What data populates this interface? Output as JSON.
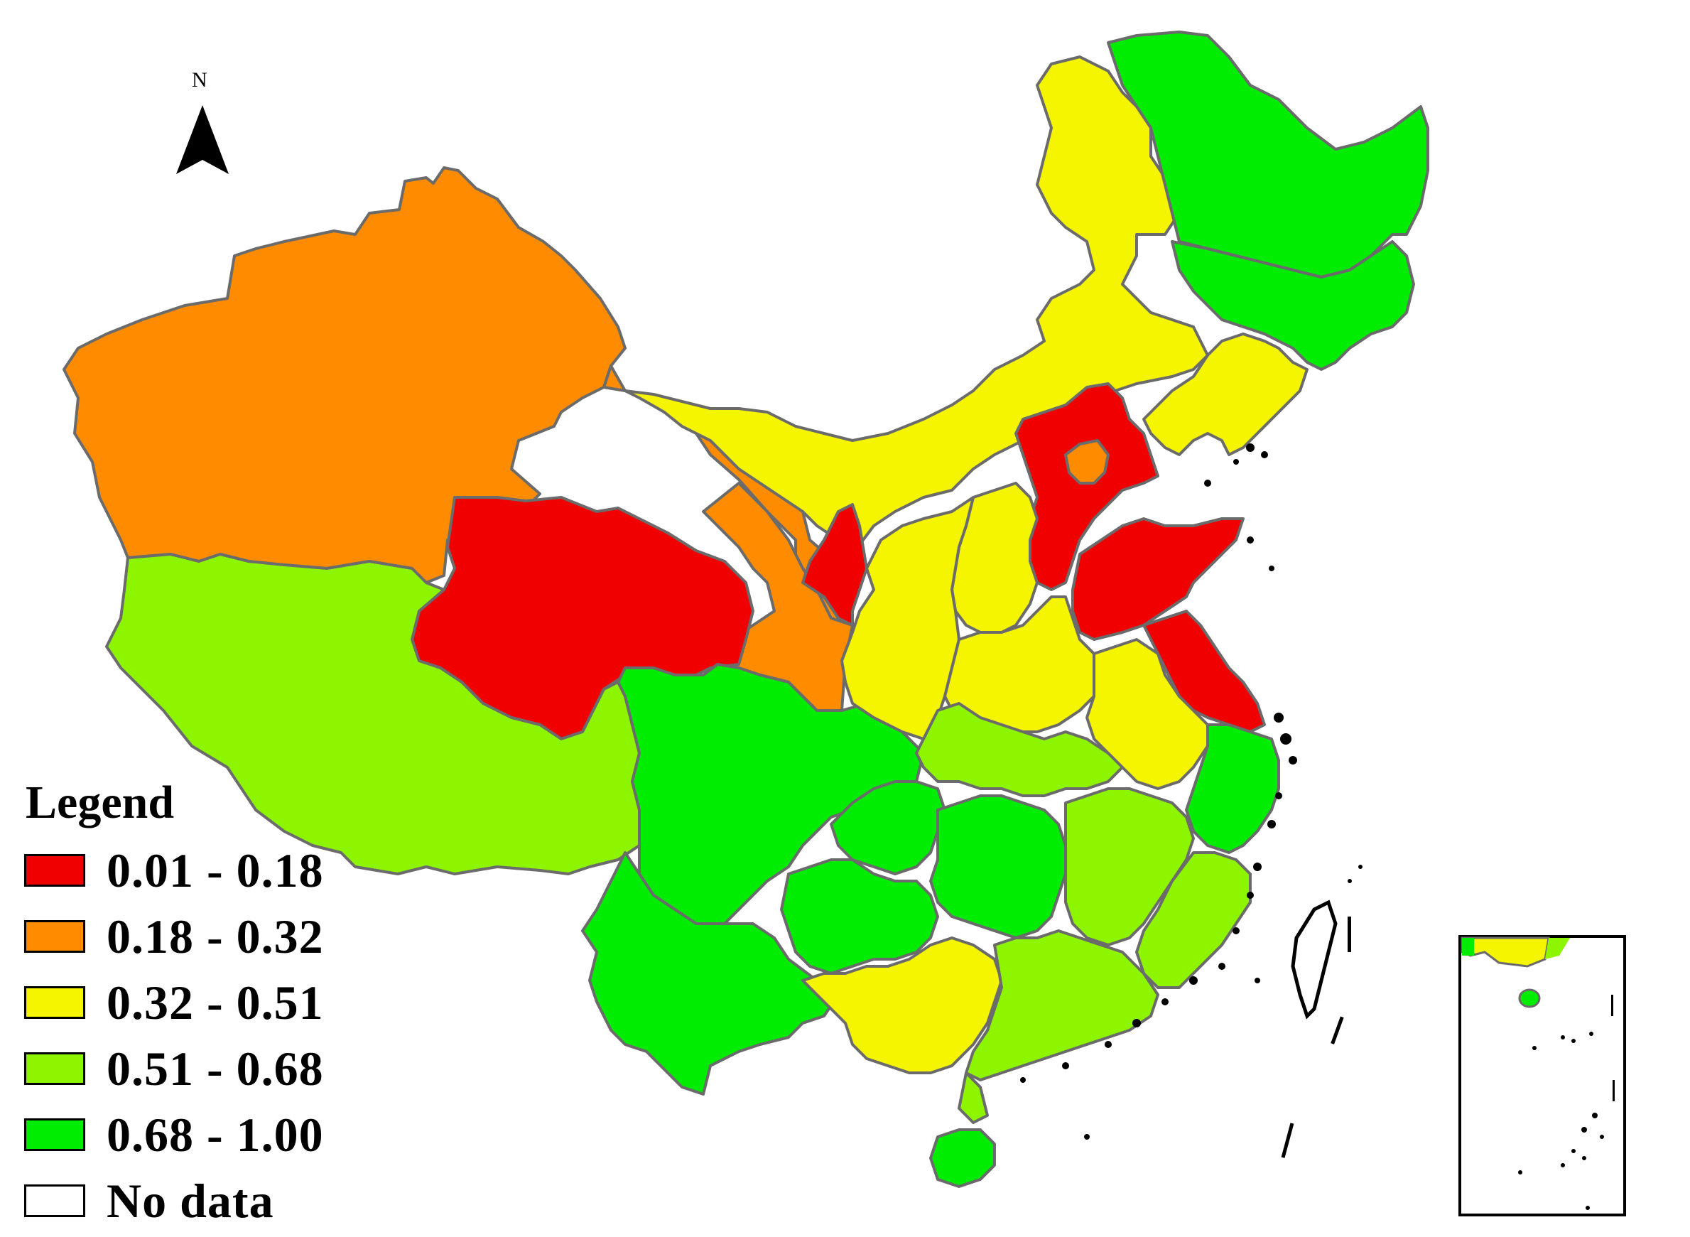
{
  "north_arrow": {
    "label": "N"
  },
  "legend": {
    "title": "Legend",
    "items": [
      {
        "label": "0.01 - 0.18",
        "color": "#f00000"
      },
      {
        "label": "0.18 - 0.32",
        "color": "#ff8c00"
      },
      {
        "label": "0.32 - 0.51",
        "color": "#f5f500"
      },
      {
        "label": "0.51 - 0.68",
        "color": "#8ef500"
      },
      {
        "label": "0.68 - 1.00",
        "color": "#00ec00"
      },
      {
        "label": "No data",
        "color": "#ffffff"
      }
    ]
  },
  "colors": {
    "class_1": "#f00000",
    "class_2": "#ff8c00",
    "class_3": "#f5f500",
    "class_4": "#8ef500",
    "class_5": "#00ec00",
    "border": "#6b6b6b"
  }
}
